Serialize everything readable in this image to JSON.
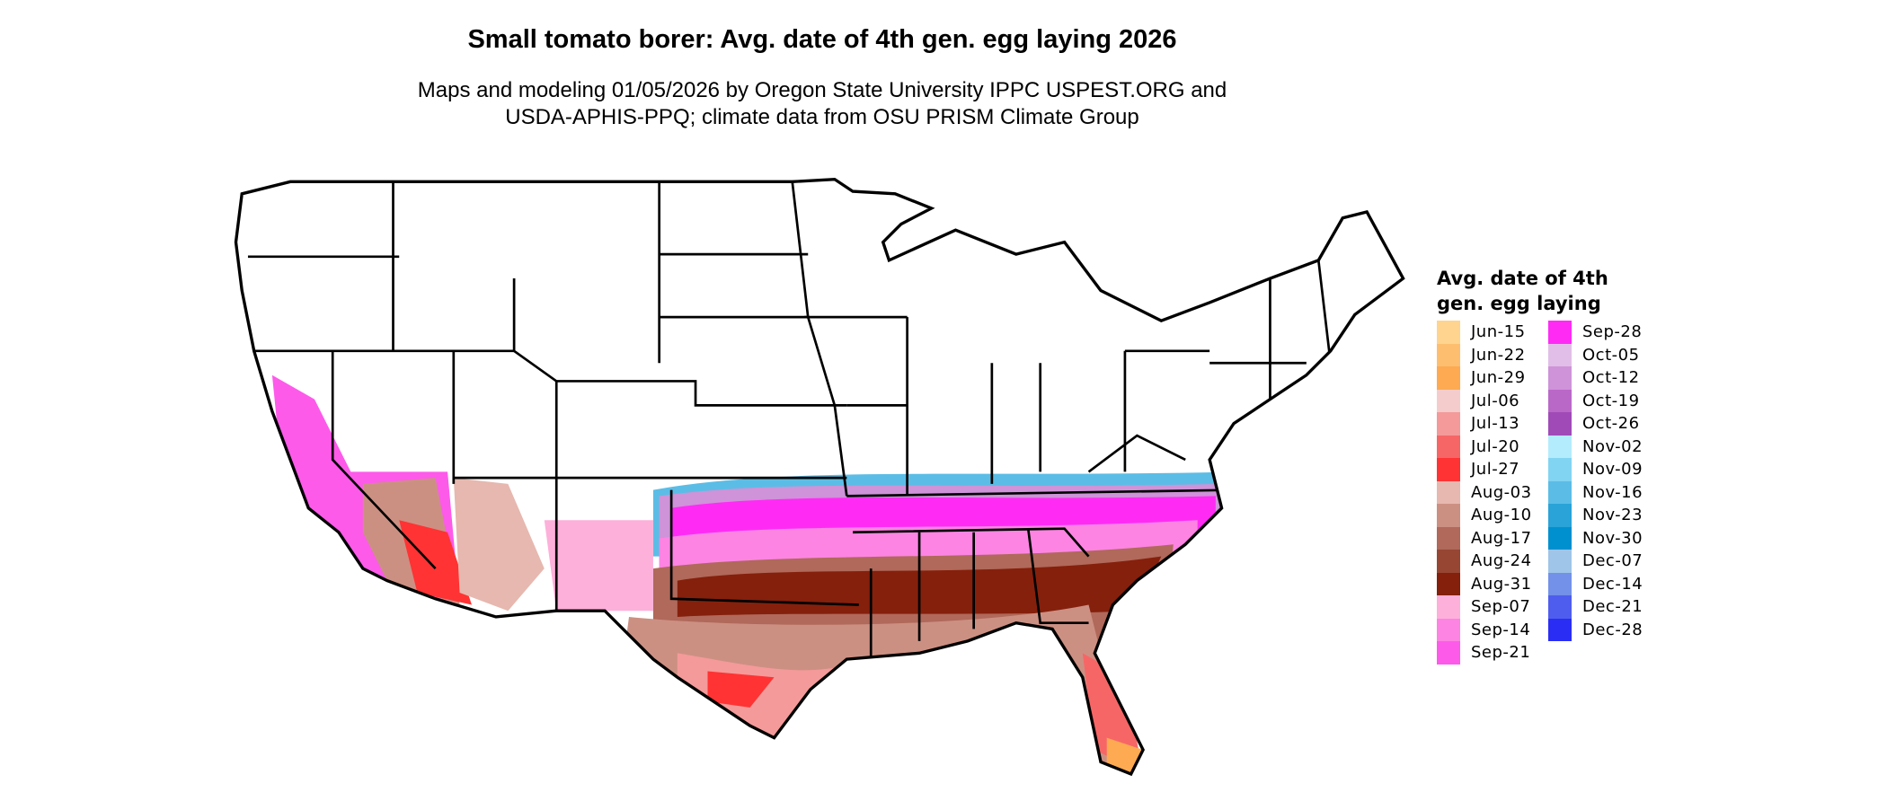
{
  "title": "Small tomato borer: Avg. date of 4th gen. egg laying 2026",
  "subtitle_line1": "Maps and modeling 01/05/2026 by Oregon State University IPPC USPEST.ORG and",
  "subtitle_line2": "USDA-APHIS-PPQ; climate data from OSU PRISM Climate Group",
  "legend": {
    "title": "Avg. date of 4th gen. egg laying",
    "items": [
      {
        "label": "Jun-15",
        "color": "#FED48E"
      },
      {
        "label": "Jun-22",
        "color": "#FDBF6F"
      },
      {
        "label": "Jun-29",
        "color": "#FDAA52"
      },
      {
        "label": "Jul-06",
        "color": "#F4CCCC"
      },
      {
        "label": "Jul-13",
        "color": "#F49A9A"
      },
      {
        "label": "Jul-20",
        "color": "#F76666"
      },
      {
        "label": "Jul-27",
        "color": "#FF3333"
      },
      {
        "label": "Aug-03",
        "color": "#E6B8AF"
      },
      {
        "label": "Aug-10",
        "color": "#CC9083"
      },
      {
        "label": "Aug-17",
        "color": "#B0695A"
      },
      {
        "label": "Aug-24",
        "color": "#984634"
      },
      {
        "label": "Aug-31",
        "color": "#85200C"
      },
      {
        "label": "Sep-07",
        "color": "#FDB0DA"
      },
      {
        "label": "Sep-14",
        "color": "#FD84E3"
      },
      {
        "label": "Sep-21",
        "color": "#FD5AEA"
      },
      {
        "label": "Sep-28",
        "color": "#FF2BF5"
      },
      {
        "label": "Oct-05",
        "color": "#E1BEE7"
      },
      {
        "label": "Oct-12",
        "color": "#CE93D8"
      },
      {
        "label": "Oct-19",
        "color": "#BA68C8"
      },
      {
        "label": "Oct-26",
        "color": "#A04AB8"
      },
      {
        "label": "Nov-02",
        "color": "#B3ECFC"
      },
      {
        "label": "Nov-09",
        "color": "#81D4F2"
      },
      {
        "label": "Nov-16",
        "color": "#5BBDE6"
      },
      {
        "label": "Nov-23",
        "color": "#29A3D8"
      },
      {
        "label": "Nov-30",
        "color": "#0090D0"
      },
      {
        "label": "Dec-07",
        "color": "#9FC5E8"
      },
      {
        "label": "Dec-14",
        "color": "#7391E8"
      },
      {
        "label": "Dec-21",
        "color": "#4E5DEE"
      },
      {
        "label": "Dec-28",
        "color": "#2A2EF5"
      }
    ]
  }
}
